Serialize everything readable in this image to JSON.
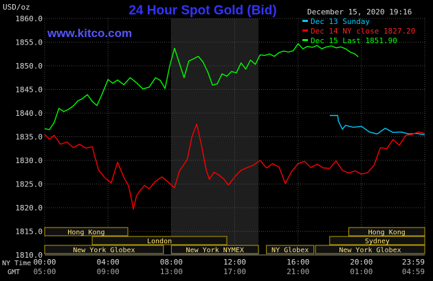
{
  "chart_data": {
    "type": "line",
    "title": "24 Hour Spot Gold (Bid)",
    "website": "www.kitco.com",
    "timestamp": "December 15, 2020 19:16",
    "ylabel": "USD/oz",
    "ylim": [
      1810,
      1860
    ],
    "y_ticks": [
      "1810.0",
      "1815.0",
      "1820.0",
      "1825.0",
      "1830.0",
      "1835.0",
      "1840.0",
      "1845.0",
      "1850.0",
      "1855.0",
      "1860.0"
    ],
    "xlim": [
      0,
      24
    ],
    "x_ticks_ny": [
      "00:00",
      "04:00",
      "08:00",
      "12:00",
      "16:00",
      "20:00",
      "23:59"
    ],
    "x_ticks_gmt": [
      "05:00",
      "09:00",
      "13:00",
      "17:00",
      "21:00",
      "01:00",
      "04:59"
    ],
    "x_row_labels": {
      "ny": "NY Time",
      "gmt": "GMT"
    },
    "grid": true,
    "background": "#000000",
    "legend_position": "top-right",
    "series": [
      {
        "name": "Dec 13 Sunday",
        "legend": "Dec 13 Sunday",
        "color": "#00ccff",
        "x": [
          18.0,
          18.5,
          18.55,
          18.8,
          19.0,
          19.5,
          20.0,
          20.5,
          21.0,
          21.5,
          22.0,
          22.5,
          23.0,
          23.5,
          23.99
        ],
        "y": [
          1839.5,
          1839.5,
          1838.3,
          1836.6,
          1837.4,
          1837.0,
          1837.2,
          1836.0,
          1835.6,
          1836.8,
          1835.9,
          1836.0,
          1835.6,
          1835.7,
          1835.4
        ]
      },
      {
        "name": "Dec 14 NY close 1827.20",
        "legend": "Dec 14 NY close 1827.20",
        "color": "#ff0000",
        "x": [
          0.0,
          0.3,
          0.6,
          1.0,
          1.4,
          1.8,
          2.2,
          2.6,
          3.0,
          3.4,
          3.8,
          4.2,
          4.6,
          5.0,
          5.3,
          5.5,
          5.6,
          5.8,
          6.0,
          6.3,
          6.6,
          7.0,
          7.4,
          7.8,
          8.2,
          8.5,
          9.0,
          9.3,
          9.6,
          9.9,
          10.2,
          10.4,
          10.7,
          11.0,
          11.3,
          11.6,
          12.0,
          12.4,
          12.8,
          13.2,
          13.6,
          14.0,
          14.4,
          14.8,
          15.2,
          15.6,
          16.0,
          16.4,
          16.8,
          17.2,
          17.6,
          18.0,
          18.4,
          18.8,
          19.2,
          19.6,
          20.0,
          20.4,
          20.8,
          21.2,
          21.6,
          22.0,
          22.4,
          22.8,
          23.2,
          23.6,
          23.99
        ],
        "y": [
          1835.5,
          1834.5,
          1835.3,
          1833.4,
          1833.9,
          1832.7,
          1833.4,
          1832.6,
          1832.9,
          1828.0,
          1826.3,
          1825.2,
          1829.6,
          1826.4,
          1824.6,
          1821.5,
          1819.7,
          1822.5,
          1823.5,
          1824.7,
          1824.0,
          1825.6,
          1826.5,
          1825.4,
          1824.2,
          1827.7,
          1830.2,
          1835.0,
          1837.7,
          1833.2,
          1828.0,
          1826.0,
          1827.5,
          1826.9,
          1826.1,
          1824.8,
          1826.5,
          1827.9,
          1828.5,
          1829.0,
          1830.0,
          1828.4,
          1829.3,
          1828.6,
          1825.1,
          1827.7,
          1829.3,
          1829.8,
          1828.5,
          1829.2,
          1828.4,
          1828.3,
          1829.9,
          1827.9,
          1827.3,
          1827.8,
          1827.1,
          1827.4,
          1829.0,
          1832.7,
          1832.5,
          1834.4,
          1833.2,
          1835.3,
          1835.5,
          1836.0,
          1835.7
        ]
      },
      {
        "name": "Dec 15 Last 1851.90",
        "legend": "Dec 15 Last 1851.90",
        "color": "#00ff00",
        "x": [
          0.0,
          0.3,
          0.6,
          0.9,
          1.2,
          1.5,
          1.8,
          2.1,
          2.4,
          2.7,
          3.0,
          3.3,
          3.6,
          4.0,
          4.3,
          4.6,
          5.0,
          5.4,
          5.8,
          6.2,
          6.6,
          7.0,
          7.3,
          7.6,
          7.9,
          8.2,
          8.5,
          8.8,
          9.1,
          9.4,
          9.7,
          10.0,
          10.3,
          10.6,
          10.9,
          11.2,
          11.5,
          11.8,
          12.1,
          12.4,
          12.7,
          13.0,
          13.3,
          13.6,
          13.9,
          14.2,
          14.5,
          14.8,
          15.1,
          15.4,
          15.7,
          16.0,
          16.3,
          16.6,
          16.9,
          17.2,
          17.5,
          17.8,
          18.1,
          18.4,
          18.7,
          19.0,
          19.3,
          19.6,
          19.8
        ],
        "y": [
          1836.7,
          1836.5,
          1838.0,
          1841.0,
          1840.3,
          1840.8,
          1841.5,
          1842.6,
          1843.1,
          1843.9,
          1842.5,
          1841.6,
          1843.8,
          1847.1,
          1846.3,
          1847.0,
          1846.0,
          1847.5,
          1846.4,
          1845.1,
          1845.5,
          1847.5,
          1846.9,
          1845.2,
          1850.0,
          1853.7,
          1850.6,
          1847.5,
          1851.0,
          1851.5,
          1852.0,
          1850.8,
          1848.7,
          1845.9,
          1846.2,
          1848.3,
          1847.8,
          1848.8,
          1848.5,
          1850.6,
          1849.3,
          1851.2,
          1850.3,
          1852.3,
          1852.2,
          1852.5,
          1852.0,
          1852.8,
          1853.1,
          1852.9,
          1853.2,
          1854.7,
          1853.6,
          1854.1,
          1853.9,
          1854.3,
          1853.6,
          1854.0,
          1854.2,
          1853.8,
          1854.0,
          1853.6,
          1852.9,
          1852.5,
          1851.9
        ]
      }
    ],
    "market_sessions": [
      {
        "name": "Hong Kong",
        "row": 0,
        "start": 0.0,
        "end": 5.25
      },
      {
        "name": "Hong Kong",
        "row": 0,
        "start": 19.2,
        "end": 24.0
      },
      {
        "name": "London",
        "row": 1,
        "start": 3.0,
        "end": 11.5
      },
      {
        "name": "Sydney",
        "row": 1,
        "start": 18.0,
        "end": 24.0
      },
      {
        "name": "New York Globex",
        "row": 2,
        "start": 0.0,
        "end": 7.5
      },
      {
        "name": "New York NYMEX",
        "row": 2,
        "start": 8.0,
        "end": 13.5
      },
      {
        "name": "NY Globex",
        "row": 2,
        "start": 14.0,
        "end": 17.0
      },
      {
        "name": "New York Globex",
        "row": 2,
        "start": 17.1,
        "end": 24.0
      }
    ],
    "nymex_band": [
      8.0,
      13.5
    ]
  },
  "colors": {
    "title": "#3333ff",
    "website": "#5555ff",
    "axis_text": "#dddddd",
    "session_box_fill": "#111111",
    "session_box_stroke": "#b8a000",
    "session_text": "#ffe680",
    "grid": "#4a4a4a",
    "nymex_band": "#1e1e1e"
  }
}
